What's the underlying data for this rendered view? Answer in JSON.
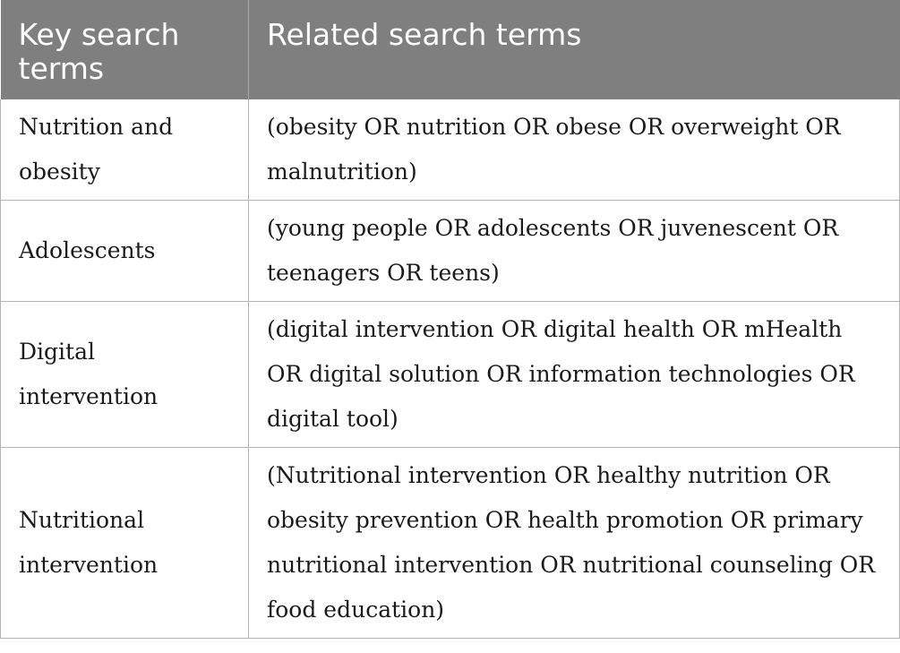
{
  "table": {
    "headers": [
      "Key search terms",
      "Related search terms"
    ],
    "rows": [
      {
        "key": "Nutrition and obesity",
        "related": "(obesity OR nutrition OR obese OR overweight OR malnutrition)"
      },
      {
        "key": "Adolescents",
        "related": "(young people OR adolescents OR juvenescent OR teenagers OR teens)"
      },
      {
        "key": "Digital intervention",
        "related": "(digital intervention OR digital health OR mHealth OR digital solution OR information technologies OR digital tool)"
      },
      {
        "key": "Nutritional intervention",
        "related": "(Nutritional intervention OR healthy nutrition OR obesity prevention OR health promotion OR primary nutritional intervention OR nutritional counseling OR food education)"
      }
    ]
  }
}
